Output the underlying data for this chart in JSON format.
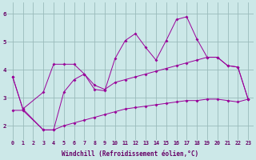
{
  "xlabel": "Windchill (Refroidissement éolien,°C)",
  "bg_color": "#cce8e8",
  "line_color": "#990099",
  "grid_color": "#99bbbb",
  "axis_color": "#660066",
  "xlim": [
    -0.5,
    23.5
  ],
  "ylim": [
    1.5,
    6.4
  ],
  "xticks": [
    0,
    1,
    2,
    3,
    4,
    5,
    6,
    7,
    8,
    9,
    10,
    11,
    12,
    13,
    14,
    15,
    16,
    17,
    18,
    19,
    20,
    21,
    22,
    23
  ],
  "yticks": [
    2,
    3,
    4,
    5,
    6
  ],
  "line1_x": [
    0,
    1,
    3,
    4,
    5,
    6,
    7,
    8,
    9,
    10,
    11,
    12,
    13,
    14,
    15,
    16,
    17,
    18,
    19,
    20,
    21,
    22,
    23
  ],
  "line1_y": [
    3.75,
    2.6,
    3.2,
    4.2,
    4.2,
    4.2,
    3.85,
    3.45,
    3.3,
    3.55,
    3.65,
    3.75,
    3.85,
    3.95,
    4.05,
    4.15,
    4.25,
    4.35,
    4.45,
    4.45,
    4.15,
    4.1,
    2.95
  ],
  "line2_x": [
    0,
    1,
    3,
    4,
    5,
    6,
    7,
    8,
    9,
    10,
    11,
    12,
    13,
    14,
    15,
    16,
    17,
    18,
    19,
    20,
    21,
    22,
    23
  ],
  "line2_y": [
    3.75,
    2.6,
    1.85,
    1.85,
    3.2,
    3.65,
    3.85,
    3.3,
    3.25,
    4.4,
    5.05,
    5.3,
    4.8,
    4.35,
    5.05,
    5.8,
    5.9,
    5.1,
    4.45,
    4.45,
    4.15,
    4.1,
    2.95
  ],
  "line3_x": [
    0,
    1,
    3,
    4,
    5,
    6,
    7,
    8,
    9,
    10,
    11,
    12,
    13,
    14,
    15,
    16,
    17,
    18,
    19,
    20,
    21,
    22,
    23
  ],
  "line3_y": [
    2.55,
    2.55,
    1.85,
    1.85,
    2.0,
    2.1,
    2.2,
    2.3,
    2.4,
    2.5,
    2.6,
    2.65,
    2.7,
    2.75,
    2.8,
    2.85,
    2.9,
    2.9,
    2.95,
    2.95,
    2.9,
    2.85,
    2.95
  ],
  "xlabel_fontsize": 5.5,
  "tick_fontsize": 4.8,
  "lw": 0.7,
  "ms": 2.0
}
